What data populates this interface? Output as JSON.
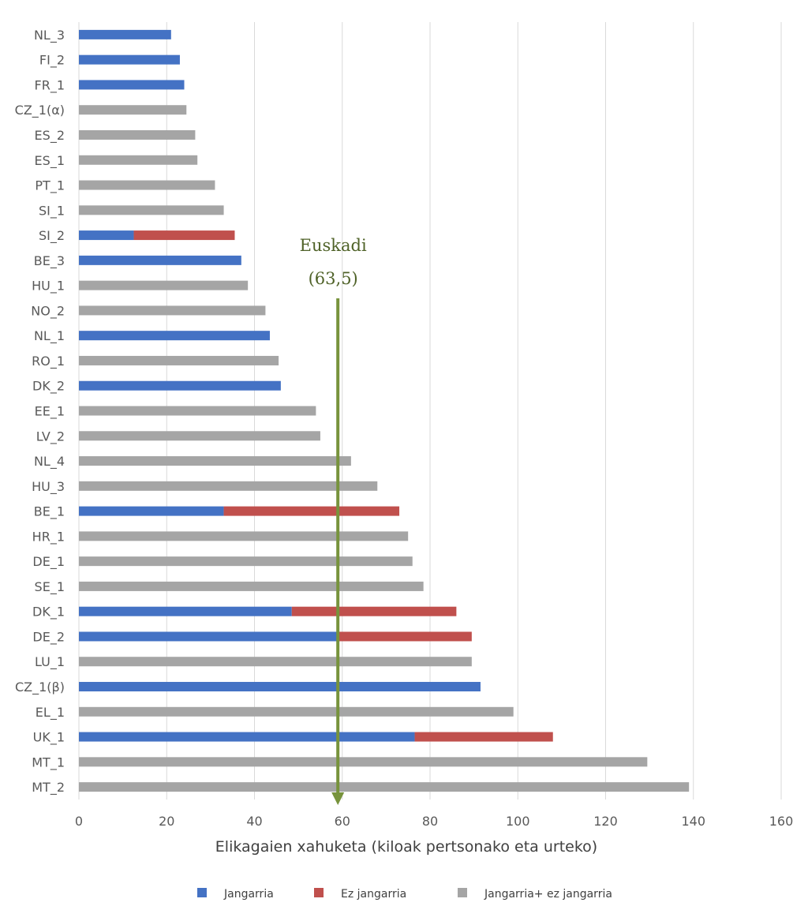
{
  "chart_data": {
    "type": "bar",
    "orientation": "horizontal",
    "stacked": true,
    "categories": [
      "NL_3",
      "FI_2",
      "FR_1",
      "CZ_1(α)",
      "ES_2",
      "ES_1",
      "PT_1",
      "SI_1",
      "SI_2",
      "BE_3",
      "HU_1",
      "NO_2",
      "NL_1",
      "RO_1",
      "DK_2",
      "EE_1",
      "LV_2",
      "NL_4",
      "HU_3",
      "BE_1",
      "HR_1",
      "DE_1",
      "SE_1",
      "DK_1",
      "DE_2",
      "LU_1",
      "CZ_1(β)",
      "EL_1",
      "UK_1",
      "MT_1",
      "MT_2"
    ],
    "series": [
      {
        "name": "Jangarria",
        "color": "#4472c4",
        "values": [
          21,
          23,
          24,
          0,
          0,
          0,
          0,
          0,
          12.5,
          37,
          0,
          0,
          43.5,
          0,
          46,
          0,
          0,
          0,
          0,
          33,
          0,
          0,
          0,
          48.5,
          59,
          0,
          91.5,
          0,
          76.5,
          0,
          0
        ]
      },
      {
        "name": "Ez jangarria",
        "color": "#c0504d",
        "values": [
          0,
          0,
          0,
          0,
          0,
          0,
          0,
          0,
          23,
          0,
          0,
          0,
          0,
          0,
          0,
          0,
          0,
          0,
          0,
          40,
          0,
          0,
          0,
          37.5,
          30.5,
          0,
          0,
          0,
          31.5,
          0,
          0
        ]
      },
      {
        "name": "Jangarria+ ez jangarria",
        "color": "#a5a5a5",
        "values": [
          0,
          0,
          0,
          24.5,
          26.5,
          27,
          31,
          33,
          0,
          0,
          38.5,
          42.5,
          0,
          45.5,
          0,
          54,
          55,
          62,
          68,
          0,
          75,
          76,
          78.5,
          0,
          0,
          89.5,
          0,
          99,
          0,
          129.5,
          139
        ]
      }
    ],
    "xlabel": "Elikagaien xahuketa (kiloak pertsonako eta urteko)",
    "ylabel": "",
    "xlim": [
      0,
      160
    ],
    "xticks": [
      0,
      20,
      40,
      60,
      80,
      100,
      120,
      140,
      160
    ],
    "grid": true,
    "legend_position": "bottom",
    "annotation": {
      "line1": "Euskadi",
      "line2": "(63,5)",
      "x_value": 59,
      "color": "#77933c"
    }
  }
}
